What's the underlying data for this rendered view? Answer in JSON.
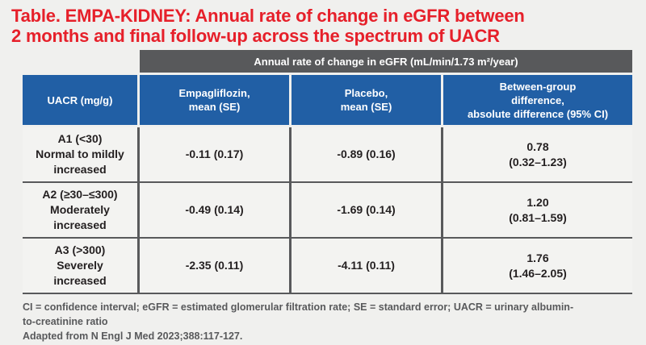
{
  "page": {
    "title": "Table. EMPA-KIDNEY: Annual rate of change in eGFR between\n2 months and final follow-up across the spectrum of UACR"
  },
  "table": {
    "span_header": "Annual rate of change in eGFR (mL/min/1.73 m²/year)",
    "columns": [
      {
        "label": "UACR (mg/g)"
      },
      {
        "label": "Empagliflozin,\nmean (SE)"
      },
      {
        "label": "Placebo,\nmean (SE)"
      },
      {
        "label": "Between-group\ndifference,\nabsolute difference (95% CI)"
      }
    ],
    "rows": [
      {
        "uacr": "A1 (<30)\nNormal to mildly\nincreased",
        "empagliflozin": "-0.11 (0.17)",
        "placebo": "-0.89 (0.16)",
        "difference": "0.78\n(0.32–1.23)"
      },
      {
        "uacr": "A2 (≥30–≤300)\nModerately\nincreased",
        "empagliflozin": "-0.49 (0.14)",
        "placebo": "-1.69 (0.14)",
        "difference": "1.20\n(0.81–1.59)"
      },
      {
        "uacr": "A3 (>300)\nSeverely\nincreased",
        "empagliflozin": "-2.35 (0.11)",
        "placebo": "-4.11 (0.11)",
        "difference": "1.76\n(1.46–2.05)"
      }
    ]
  },
  "footnotes": {
    "abbreviations": "CI = confidence interval; eGFR = estimated glomerular filtration rate; SE = standard error; UACR = urinary albumin-\nto-creatinine ratio",
    "source": "Adapted from N Engl J Med 2023;388:117-127."
  },
  "colors": {
    "title_red": "#e6202a",
    "header_gray": "#58595b",
    "header_blue": "#215fa5",
    "cell_background": "#f3f3f1",
    "page_background": "#f0f0ee",
    "data_text": "#231f20",
    "footnote_gray": "#58595b"
  }
}
